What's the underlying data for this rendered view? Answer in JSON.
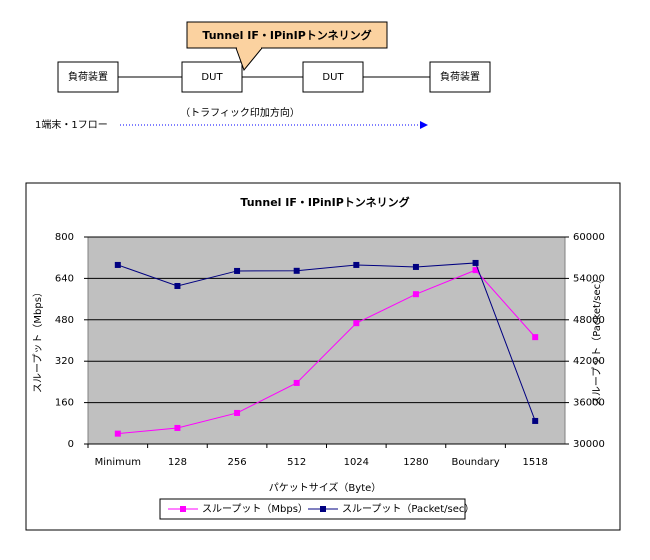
{
  "diagram": {
    "callout": "Tunnel IF・IPinIPトンネリング",
    "nodes": [
      {
        "label": "負荷装置"
      },
      {
        "label": "DUT"
      },
      {
        "label": "DUT"
      },
      {
        "label": "負荷装置"
      }
    ],
    "direction_label": "（トラフィック印加方向）",
    "flow_label": "1端末・1フロー"
  },
  "chart_data": {
    "type": "line",
    "title": "Tunnel IF・IPinIPトンネリング",
    "categories": [
      "Minimum",
      "128",
      "256",
      "512",
      "1024",
      "1280",
      "Boundary",
      "1518"
    ],
    "series": [
      {
        "name": "スループット（Mbps）",
        "color": "#ff00ff",
        "values": [
          40,
          62,
          120,
          236,
          467,
          579,
          672,
          413
        ]
      },
      {
        "name": "スループット（Packet/sec）",
        "color": "#000080",
        "axis": "y2",
        "values": [
          55950,
          52900,
          55080,
          55100,
          55950,
          55660,
          56240,
          33340
        ]
      }
    ],
    "ylim": [
      0,
      800
    ],
    "yticks": [
      0,
      160,
      320,
      480,
      640,
      800
    ],
    "y2lim": [
      30000,
      60000
    ],
    "y2ticks": [
      30000,
      36000,
      42000,
      48000,
      54000,
      60000
    ],
    "xlabel": "パケットサイズ（Byte）",
    "ylabel": "スループット（Mbps）",
    "y2label": "スループット（Packet/sec）",
    "grid": true,
    "plot_color": "#c0c0c0",
    "legend": "bottom"
  }
}
